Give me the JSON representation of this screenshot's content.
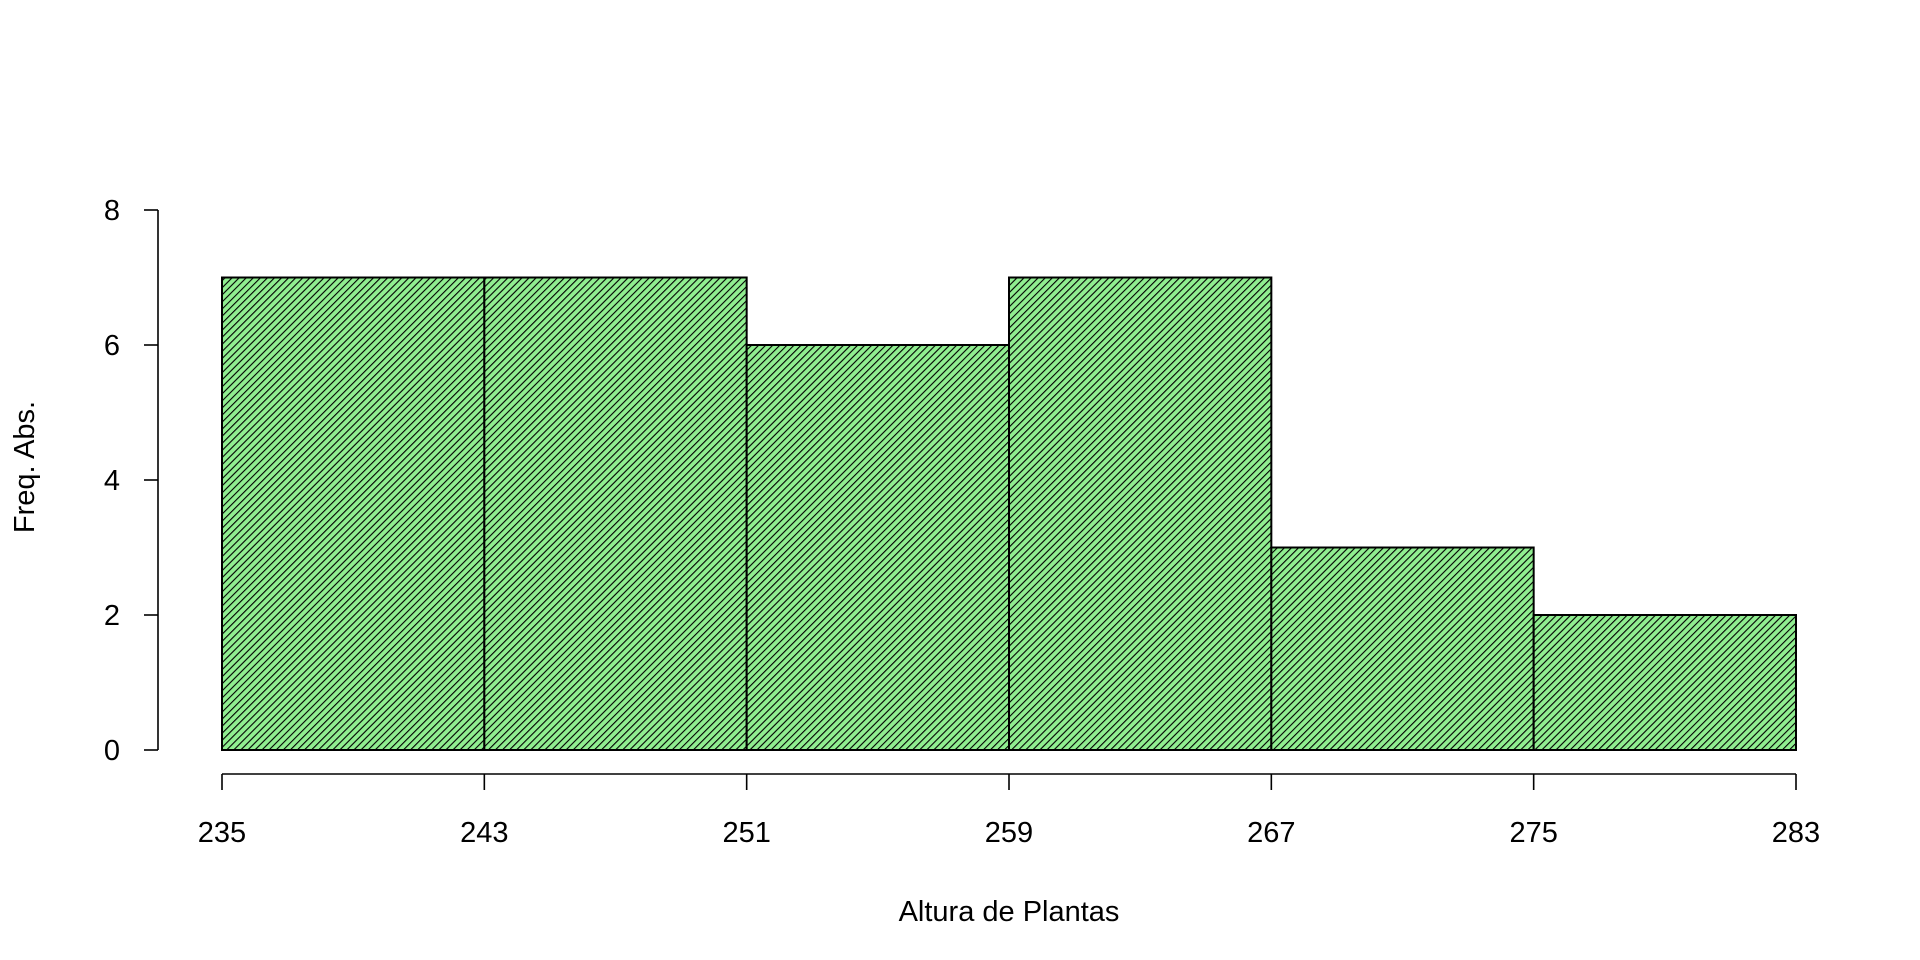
{
  "chart_data": {
    "type": "bar",
    "subtype": "histogram",
    "title": "",
    "xlabel": "Altura de Plantas",
    "ylabel": "Freq. Abs.",
    "breaks": [
      235,
      243,
      251,
      259,
      267,
      275,
      283
    ],
    "values": [
      7,
      7,
      6,
      7,
      3,
      2
    ],
    "xlim": [
      235,
      283
    ],
    "ylim": [
      0,
      8
    ],
    "x_ticks": [
      "235",
      "243",
      "251",
      "259",
      "267",
      "275",
      "283"
    ],
    "y_ticks": [
      "0",
      "2",
      "4",
      "6",
      "8"
    ],
    "grid": false,
    "legend": "none",
    "fill_color": "#90ee90",
    "hatch_color": "#000000",
    "hatch_style": "diagonal lines"
  }
}
